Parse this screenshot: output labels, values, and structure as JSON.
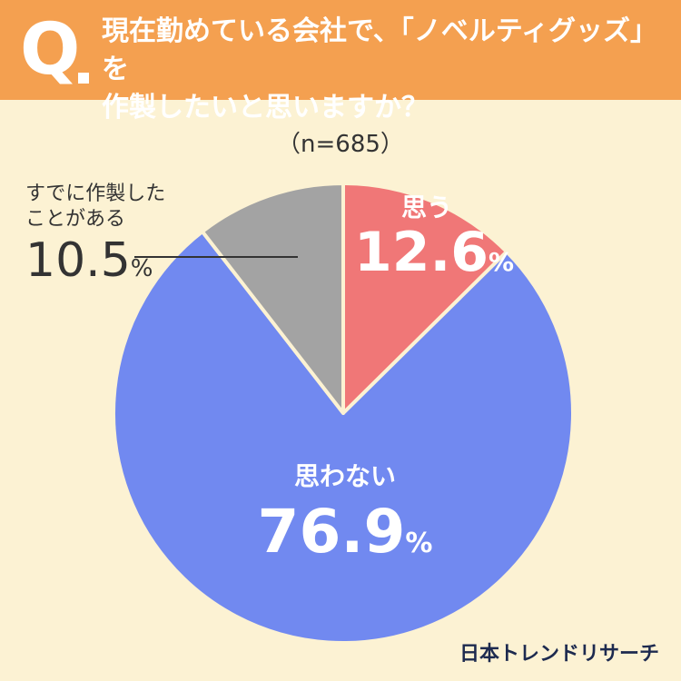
{
  "question": {
    "mark": "Q",
    "line1": "現在勤めている会社で、「ノベルティグッズ」を",
    "line2": "作製したいと思いますか？"
  },
  "sample_size": "（n=685）",
  "brand": "日本トレンドリサーチ",
  "chart_data": {
    "type": "pie",
    "categories": [
      "思う",
      "思わない",
      "すでに作製したことがある"
    ],
    "values": [
      12.6,
      76.9,
      10.5
    ],
    "value_labels": [
      "12.6",
      "76.9",
      "10.5"
    ],
    "unit": "%",
    "colors": [
      "#F07777",
      "#7189F0",
      "#A3A3A3"
    ],
    "start": "12 o'clock",
    "direction": "clockwise",
    "annotations": {
      "third_line1": "すでに作製した",
      "third_line2": "ことがある"
    }
  }
}
